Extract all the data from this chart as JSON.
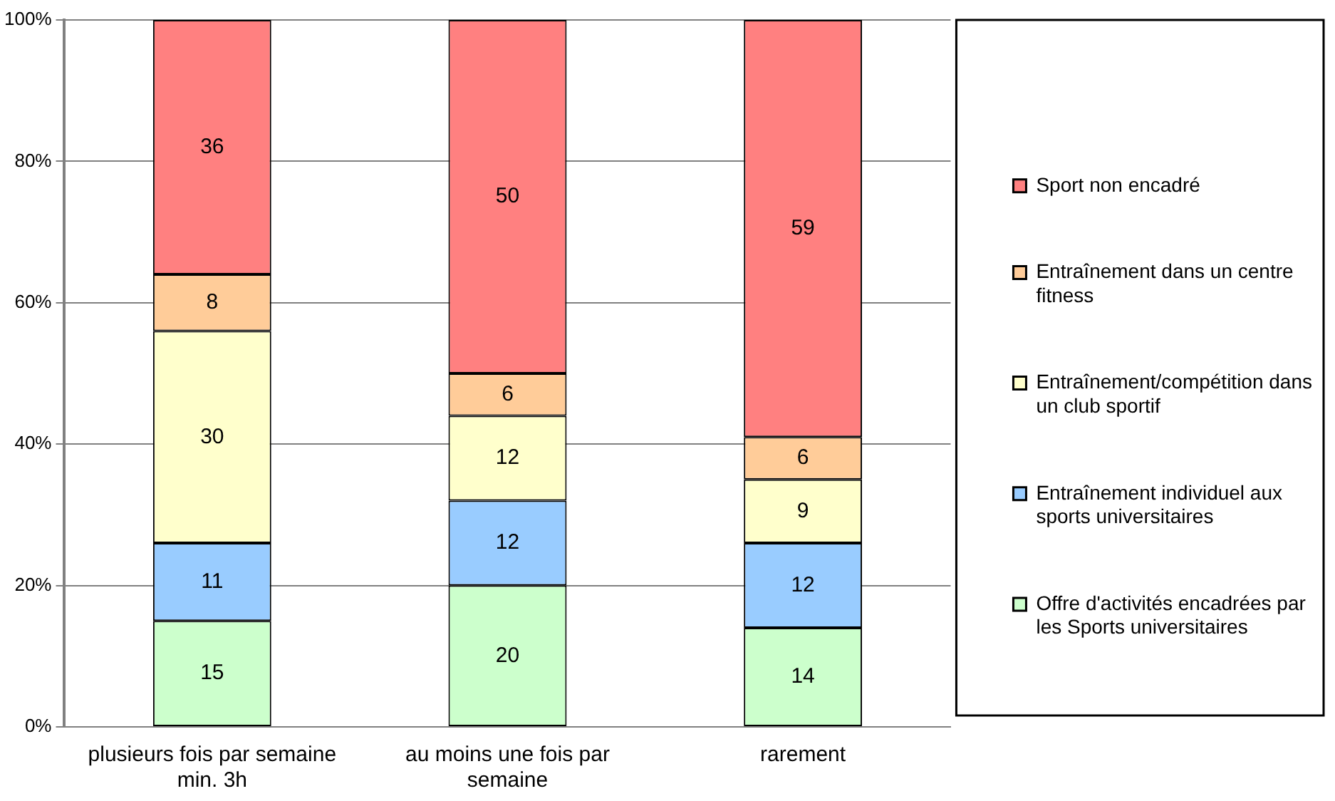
{
  "chart_data": {
    "type": "bar",
    "stacked": true,
    "categories": [
      "plusieurs fois par semaine min. 3h",
      "au moins une fois par semaine",
      "rarement"
    ],
    "series": [
      {
        "name": "Offre d'activités encadrées par les Sports universitaires",
        "color": "#ccffcc",
        "values": [
          15,
          20,
          14
        ]
      },
      {
        "name": "Entraînement individuel aux sports universitaires",
        "color": "#99ccff",
        "values": [
          11,
          12,
          12
        ]
      },
      {
        "name": "Entraînement/compétition dans un club sportif",
        "color": "#ffffcc",
        "values": [
          30,
          12,
          9
        ]
      },
      {
        "name": "Entraînement dans un centre fitness",
        "color": "#ffcc99",
        "values": [
          8,
          6,
          6
        ]
      },
      {
        "name": "Sport non encadré",
        "color": "#ff8080",
        "values": [
          36,
          50,
          59
        ]
      }
    ],
    "ylim": [
      0,
      100
    ],
    "yticks": [
      {
        "value": 0,
        "label": "0%"
      },
      {
        "value": 20,
        "label": "20%"
      },
      {
        "value": 40,
        "label": "40%"
      },
      {
        "value": 60,
        "label": "60%"
      },
      {
        "value": 80,
        "label": "80%"
      },
      {
        "value": 100,
        "label": "100%"
      }
    ],
    "grid": "y",
    "legend": "right",
    "data_labels": true
  }
}
